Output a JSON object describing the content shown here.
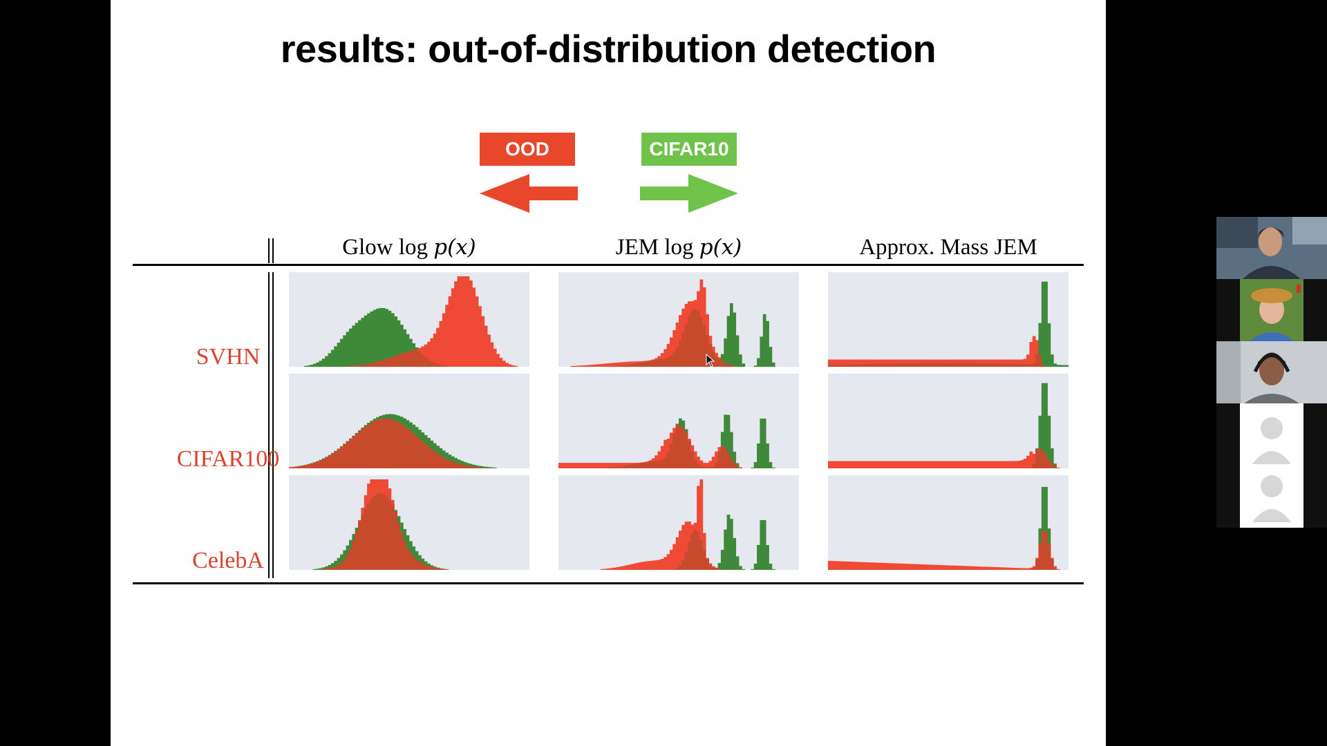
{
  "slide": {
    "title": "results: out-of-distribution detection",
    "legend": {
      "ood_label": "OOD",
      "in_label": "CIFAR10",
      "ood_color": "#e8472b",
      "in_color": "#6fc24a"
    },
    "columns": [
      {
        "prefix": "Glow",
        "log": "log",
        "expr": "p(x)"
      },
      {
        "prefix": "JEM",
        "log": "log",
        "expr": "p(x)"
      },
      {
        "prefix": "Approx. Mass JEM",
        "log": "",
        "expr": ""
      }
    ],
    "rows": [
      "SVHN",
      "CIFAR100",
      "CelebA"
    ],
    "histogram_colors": {
      "panel_bg": "#e6e8f0",
      "green": "#3f8a3a",
      "red": "#ee4a36",
      "overlap": "#c84a2c"
    }
  },
  "participants": {
    "tiles": [
      {
        "name": "participant-1",
        "kind": "video"
      },
      {
        "name": "participant-2",
        "kind": "video"
      },
      {
        "name": "participant-3",
        "kind": "video"
      },
      {
        "name": "participant-4",
        "kind": "avatar"
      },
      {
        "name": "participant-5",
        "kind": "avatar"
      }
    ]
  }
}
